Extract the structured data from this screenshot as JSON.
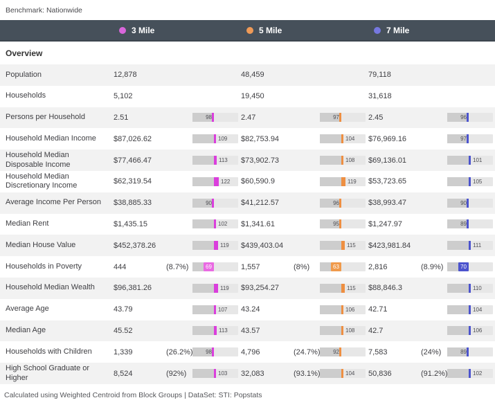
{
  "benchmark_label": "Benchmark: Nationwide",
  "section_title": "Overview",
  "footer_text": "Calculated using Weighted Centroid from Block Groups | DataSet: STI: Popstats",
  "colors": {
    "header_bar": "#46505a",
    "row_alt": "#f2f2f2",
    "gauge_track": "#e7e7e7",
    "gauge_fill": "#cdcdcd"
  },
  "legend": [
    {
      "label": "3 Mile",
      "dot_color": "#d966db",
      "marker_color": "#da3edc",
      "chip_color": "#e96ae2"
    },
    {
      "label": "5 Mile",
      "dot_color": "#ef9a57",
      "marker_color": "#ee8f42",
      "chip_color": "#f09a4b"
    },
    {
      "label": "7 Mile",
      "dot_color": "#7678e0",
      "marker_color": "#4c54ce",
      "chip_color": "#4b53cd"
    }
  ],
  "rows": [
    {
      "label": "Population",
      "cells": [
        {
          "value": "12,878"
        },
        {
          "value": "48,459"
        },
        {
          "value": "79,118"
        }
      ]
    },
    {
      "label": "Households",
      "cells": [
        {
          "value": "5,102"
        },
        {
          "value": "19,450"
        },
        {
          "value": "31,618"
        }
      ]
    },
    {
      "label": "Persons per Household",
      "cells": [
        {
          "value": "2.51",
          "index": 98
        },
        {
          "value": "2.47",
          "index": 97
        },
        {
          "value": "2.45",
          "index": 96
        }
      ]
    },
    {
      "label": "Household Median Income",
      "cells": [
        {
          "value": "$87,026.62",
          "index": 109
        },
        {
          "value": "$82,753.94",
          "index": 104
        },
        {
          "value": "$76,969.16",
          "index": 97
        }
      ]
    },
    {
      "label": "Household Median Disposable Income",
      "cells": [
        {
          "value": "$77,466.47",
          "index": 113
        },
        {
          "value": "$73,902.73",
          "index": 108
        },
        {
          "value": "$69,136.01",
          "index": 101
        }
      ]
    },
    {
      "label": "Household Median Discretionary Income",
      "cells": [
        {
          "value": "$62,319.54",
          "index": 122
        },
        {
          "value": "$60,590.9",
          "index": 119
        },
        {
          "value": "$53,723.65",
          "index": 105
        }
      ]
    },
    {
      "label": "Average Income Per Person",
      "cells": [
        {
          "value": "$38,885.33",
          "index": 90
        },
        {
          "value": "$41,212.57",
          "index": 96
        },
        {
          "value": "$38,993.47",
          "index": 90
        }
      ]
    },
    {
      "label": "Median Rent",
      "cells": [
        {
          "value": "$1,435.15",
          "index": 102
        },
        {
          "value": "$1,341.61",
          "index": 95
        },
        {
          "value": "$1,247.97",
          "index": 89
        }
      ]
    },
    {
      "label": "Median House Value",
      "cells": [
        {
          "value": "$452,378.26",
          "index": 119
        },
        {
          "value": "$439,403.04",
          "index": 115
        },
        {
          "value": "$423,981.84",
          "index": 111
        }
      ]
    },
    {
      "label": "Households in Poverty",
      "cells": [
        {
          "value": "444",
          "pct": "(8.7%)",
          "index": 69,
          "chip": true
        },
        {
          "value": "1,557",
          "pct": "(8%)",
          "index": 63,
          "chip": true
        },
        {
          "value": "2,816",
          "pct": "(8.9%)",
          "index": 70,
          "chip": true
        }
      ]
    },
    {
      "label": "Household Median Wealth",
      "cells": [
        {
          "value": "$96,381.26",
          "index": 119
        },
        {
          "value": "$93,254.27",
          "index": 115
        },
        {
          "value": "$88,846.3",
          "index": 110
        }
      ]
    },
    {
      "label": "Average Age",
      "cells": [
        {
          "value": "43.79",
          "index": 107
        },
        {
          "value": "43.24",
          "index": 106
        },
        {
          "value": "42.71",
          "index": 104
        }
      ]
    },
    {
      "label": "Median Age",
      "cells": [
        {
          "value": "45.52",
          "index": 113
        },
        {
          "value": "43.57",
          "index": 108
        },
        {
          "value": "42.7",
          "index": 106
        }
      ]
    },
    {
      "label": "Households with Children",
      "cells": [
        {
          "value": "1,339",
          "pct": "(26.2%)",
          "index": 98
        },
        {
          "value": "4,796",
          "pct": "(24.7%)",
          "index": 92
        },
        {
          "value": "7,583",
          "pct": "(24%)",
          "index": 89
        }
      ]
    },
    {
      "label": "High School Graduate or Higher",
      "cells": [
        {
          "value": "8,524",
          "pct": "(92%)",
          "index": 103
        },
        {
          "value": "32,083",
          "pct": "(93.1%)",
          "index": 104
        },
        {
          "value": "50,836",
          "pct": "(91.2%)",
          "index": 102
        }
      ]
    }
  ]
}
